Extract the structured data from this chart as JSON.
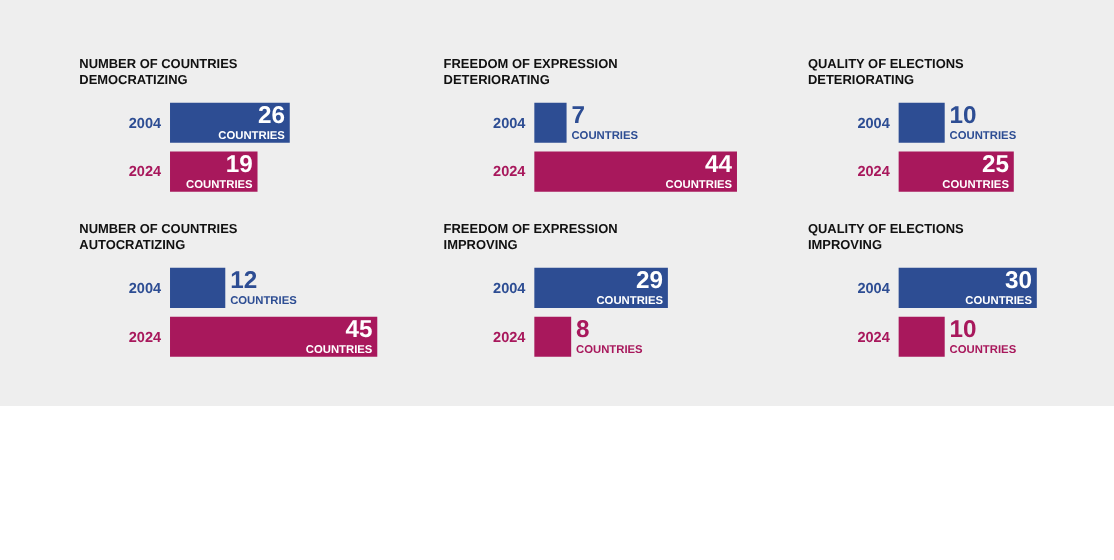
{
  "chart_data": [
    {
      "type": "bar",
      "orientation": "horizontal",
      "title": "NUMBER OF COUNTRIES DEMOCRATIZING",
      "categories": [
        "2004",
        "2024"
      ],
      "values": [
        26,
        19
      ],
      "colors": [
        "#2d4d93",
        "#a8185c"
      ],
      "value_labels": [
        "26 COUNTRIES",
        "19 COUNTRIES"
      ],
      "tick_labels": "y"
    },
    {
      "type": "bar",
      "orientation": "horizontal",
      "title": "FREEDOM OF EXPRESSION DETERIORATING",
      "categories": [
        "2004",
        "2024"
      ],
      "values": [
        7,
        44
      ],
      "colors": [
        "#2d4d93",
        "#a8185c"
      ],
      "value_labels": [
        "7 COUNTRIES",
        "44 COUNTRIES"
      ],
      "tick_labels": "y"
    },
    {
      "type": "bar",
      "orientation": "horizontal",
      "title": "QUALITY OF ELECTIONS DETERIORATING",
      "categories": [
        "2004",
        "2024"
      ],
      "values": [
        10,
        25
      ],
      "colors": [
        "#2d4d93",
        "#a8185c"
      ],
      "value_labels": [
        "10 COUNTRIES",
        "25 COUNTRIES"
      ],
      "tick_labels": "y"
    },
    {
      "type": "bar",
      "orientation": "horizontal",
      "title": "NUMBER OF COUNTRIES AUTOCRATIZING",
      "categories": [
        "2004",
        "2024"
      ],
      "values": [
        12,
        45
      ],
      "colors": [
        "#2d4d93",
        "#a8185c"
      ],
      "value_labels": [
        "12 COUNTRIES",
        "45 COUNTRIES"
      ],
      "tick_labels": "y"
    },
    {
      "type": "bar",
      "orientation": "horizontal",
      "title": "FREEDOM OF EXPRESSION IMPROVING",
      "categories": [
        "2004",
        "2024"
      ],
      "values": [
        29,
        8
      ],
      "colors": [
        "#2d4d93",
        "#a8185c"
      ],
      "value_labels": [
        "29 COUNTRIES",
        "8 COUNTRIES"
      ],
      "tick_labels": "y"
    },
    {
      "type": "bar",
      "orientation": "horizontal",
      "title": "QUALITY OF ELECTIONS IMPROVING",
      "categories": [
        "2004",
        "2024"
      ],
      "values": [
        30,
        10
      ],
      "colors": [
        "#2d4d93",
        "#a8185c"
      ],
      "value_labels": [
        "30 COUNTRIES",
        "10 COUNTRIES"
      ],
      "tick_labels": "y"
    }
  ]
}
